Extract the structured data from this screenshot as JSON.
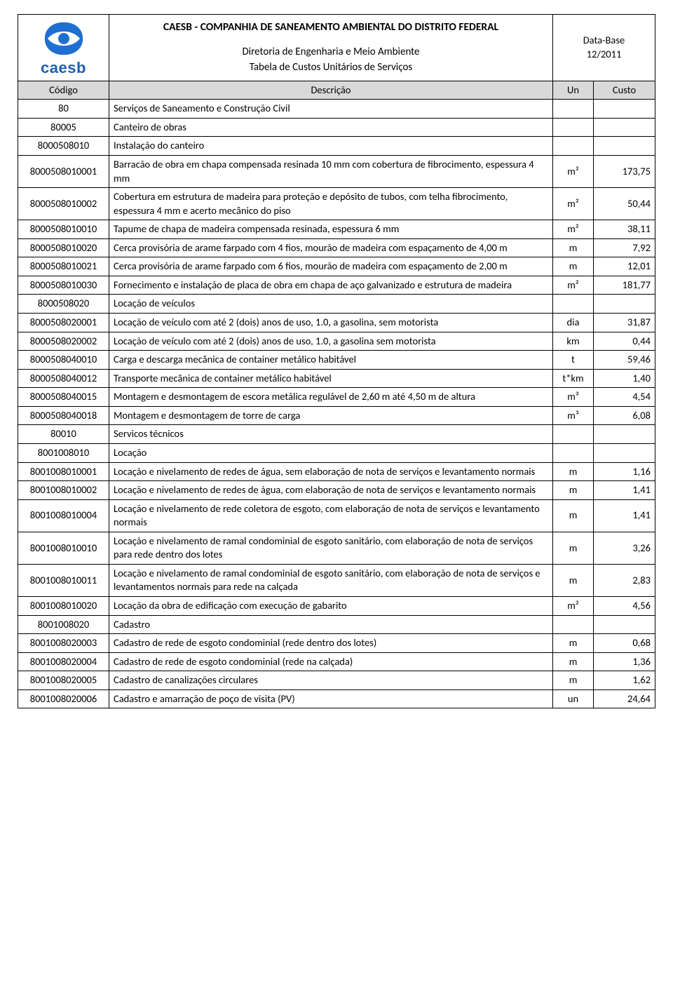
{
  "header": {
    "org_title": "CAESB - COMPANHIA DE SANEAMENTO AMBIENTAL DO DISTRITO FEDERAL",
    "dept": "Diretoria de Engenharia e Meio Ambiente",
    "table_title": "Tabela de Custos Unitários de Serviços",
    "logo_text": "caesb",
    "databasis_label": "Data-Base",
    "databasis_value": "12/2011"
  },
  "columns": {
    "codigo": "Código",
    "descricao": "Descrição",
    "un": "Un",
    "custo": "Custo"
  },
  "logo_colors": {
    "primary": "#1f6fd0",
    "dark": "#144c94"
  },
  "rows": [
    {
      "codigo": "80",
      "descricao": "Serviços de Saneamento e Construção Civil",
      "un": "",
      "custo": ""
    },
    {
      "codigo": "80005",
      "descricao": "Canteiro de obras",
      "un": "",
      "custo": ""
    },
    {
      "codigo": "8000508010",
      "descricao": "Instalação do canteiro",
      "un": "",
      "custo": ""
    },
    {
      "codigo": "8000508010001",
      "descricao": "Barracão de obra em chapa compensada resinada 10 mm com cobertura de fibrocimento, espessura 4 mm",
      "un": "m²",
      "custo": "173,75"
    },
    {
      "codigo": "8000508010002",
      "descricao": "Cobertura em estrutura de madeira para proteção e depósito de tubos, com telha fibrocimento, espessura 4 mm e acerto mecânico do piso",
      "un": "m²",
      "custo": "50,44"
    },
    {
      "codigo": "8000508010010",
      "descricao": "Tapume de chapa de madeira compensada resinada, espessura 6 mm",
      "un": "m²",
      "custo": "38,11"
    },
    {
      "codigo": "8000508010020",
      "descricao": "Cerca provisória de arame farpado com 4 fios, mourão de madeira com espaçamento de 4,00 m",
      "un": "m",
      "custo": "7,92"
    },
    {
      "codigo": "8000508010021",
      "descricao": "Cerca provisória de arame farpado com 6 fios, mourão de madeira com espaçamento de 2,00 m",
      "un": "m",
      "custo": "12,01"
    },
    {
      "codigo": "8000508010030",
      "descricao": "Fornecimento e instalação de placa de obra em chapa de aço galvanizado e estrutura de madeira",
      "un": "m²",
      "custo": "181,77"
    },
    {
      "codigo": "8000508020",
      "descricao": "Locação de veículos",
      "un": "",
      "custo": ""
    },
    {
      "codigo": "8000508020001",
      "descricao": "Locação de veículo com até 2 (dois) anos de uso, 1.0, a gasolina, sem motorista",
      "un": "dia",
      "custo": "31,87"
    },
    {
      "codigo": "8000508020002",
      "descricao": "Locação de veículo com até 2 (dois) anos de uso, 1.0, a gasolina sem motorista",
      "un": "km",
      "custo": "0,44"
    },
    {
      "codigo": "8000508040010",
      "descricao": "Carga e descarga mecânica de container metálico habitável",
      "un": "t",
      "custo": "59,46"
    },
    {
      "codigo": "8000508040012",
      "descricao": "Transporte mecânica de container metálico habitável",
      "un": "t*km",
      "custo": "1,40"
    },
    {
      "codigo": "8000508040015",
      "descricao": "Montagem e desmontagem de escora metálica regulável de 2,60 m até 4,50 m de altura",
      "un": "m³",
      "custo": "4,54"
    },
    {
      "codigo": "8000508040018",
      "descricao": "Montagem e desmontagem de torre de carga",
      "un": "m³",
      "custo": "6,08"
    },
    {
      "codigo": "80010",
      "descricao": "Servicos técnicos",
      "un": "",
      "custo": ""
    },
    {
      "codigo": "8001008010",
      "descricao": "Locação",
      "un": "",
      "custo": ""
    },
    {
      "codigo": "8001008010001",
      "descricao": "Locação e nivelamento de redes de água, sem elaboração de nota de serviços e levantamento normais",
      "un": "m",
      "custo": "1,16"
    },
    {
      "codigo": "8001008010002",
      "descricao": "Locação e nivelamento de redes de água, com elaboração de nota de serviços e levantamento normais",
      "un": "m",
      "custo": "1,41"
    },
    {
      "codigo": "8001008010004",
      "descricao": "Locação e nivelamento de rede coletora de esgoto, com elaboração de nota de serviços e levantamento normais",
      "un": "m",
      "custo": "1,41"
    },
    {
      "codigo": "8001008010010",
      "descricao": "Locação e nivelamento de ramal condominial de esgoto sanitário, com elaboração de nota de serviços para rede dentro dos lotes",
      "un": "m",
      "custo": "3,26"
    },
    {
      "codigo": "8001008010011",
      "descricao": "Locação e nivelamento de ramal condominial de esgoto sanitário, com elaboração de nota de serviços e levantamentos normais para rede na calçada",
      "un": "m",
      "custo": "2,83"
    },
    {
      "codigo": "8001008010020",
      "descricao": "Locação da obra de edificação com execução de gabarito",
      "un": "m²",
      "custo": "4,56"
    },
    {
      "codigo": "8001008020",
      "descricao": "Cadastro",
      "un": "",
      "custo": ""
    },
    {
      "codigo": "8001008020003",
      "descricao": "Cadastro de rede de esgoto condominial (rede dentro dos lotes)",
      "un": "m",
      "custo": "0,68"
    },
    {
      "codigo": "8001008020004",
      "descricao": "Cadastro de rede de esgoto condominial (rede na calçada)",
      "un": "m",
      "custo": "1,36"
    },
    {
      "codigo": "8001008020005",
      "descricao": "Cadastro de canalizações circulares",
      "un": "m",
      "custo": "1,62"
    },
    {
      "codigo": "8001008020006",
      "descricao": "Cadastro e amarração de poço de visita (PV)",
      "un": "un",
      "custo": "24,64"
    }
  ]
}
